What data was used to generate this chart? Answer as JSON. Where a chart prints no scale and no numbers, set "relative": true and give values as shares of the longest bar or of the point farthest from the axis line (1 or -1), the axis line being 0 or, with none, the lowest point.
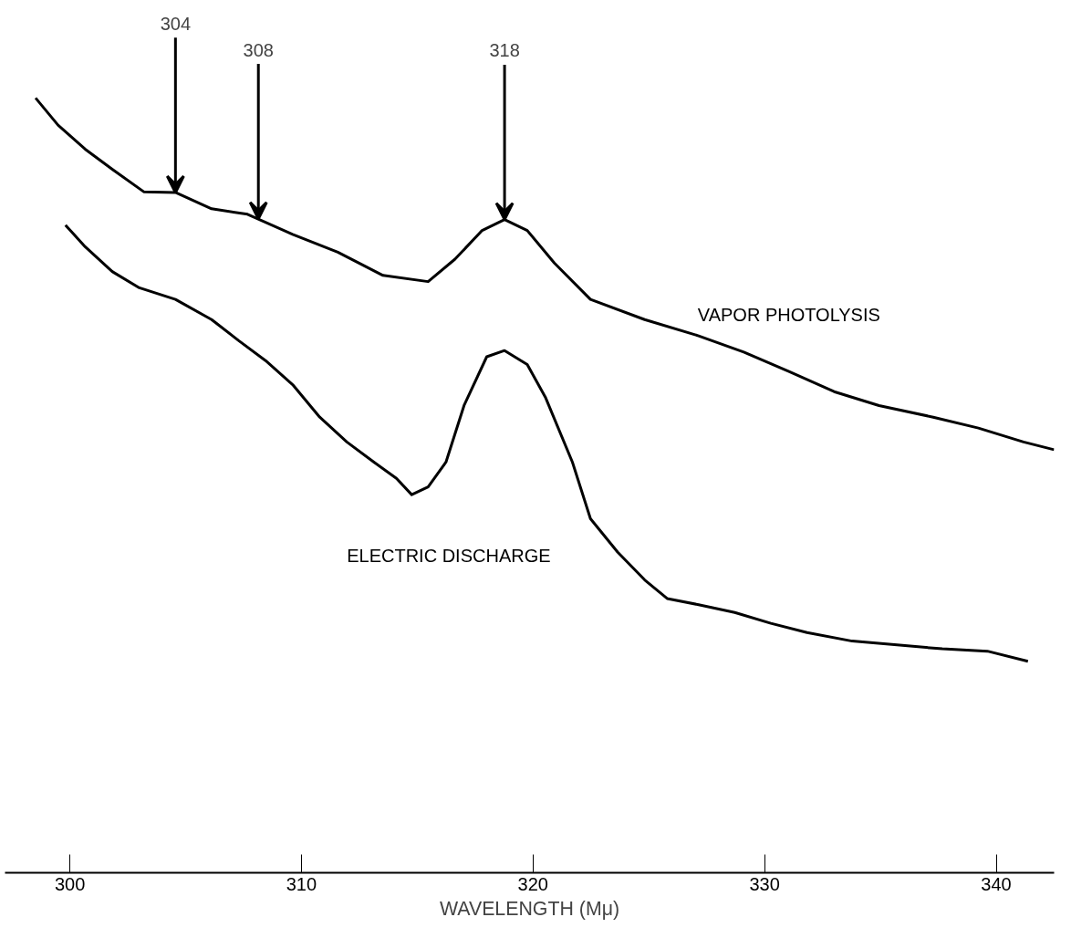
{
  "chart_data": {
    "type": "line",
    "relative": true,
    "xlabel": "WAVELENGTH (Mμ)",
    "xlim": [
      297.2,
      342.5
    ],
    "xticks": [
      300,
      310,
      320,
      330,
      340
    ],
    "grid": false,
    "series": [
      {
        "name": "VAPOR PHOTOLYSIS",
        "color": "#000000",
        "x": [
          298.52,
          299.49,
          300.66,
          301.83,
          303.19,
          304.56,
          306.12,
          307.67,
          309.62,
          311.57,
          313.52,
          315.47,
          316.63,
          317.8,
          318.77,
          319.75,
          320.92,
          322.48,
          324.82,
          327.15,
          329.1,
          331.05,
          333.0,
          334.94,
          337.28,
          339.23,
          341.18,
          342.5
        ],
        "values": [
          1.0,
          0.965,
          0.934,
          0.908,
          0.879,
          0.878,
          0.857,
          0.85,
          0.824,
          0.801,
          0.771,
          0.763,
          0.792,
          0.829,
          0.843,
          0.829,
          0.787,
          0.74,
          0.714,
          0.693,
          0.672,
          0.647,
          0.621,
          0.603,
          0.588,
          0.574,
          0.556,
          0.546
        ]
      },
      {
        "name": "ELECTRIC DISCHARGE",
        "color": "#000000",
        "x": [
          299.81,
          300.66,
          301.83,
          303.0,
          304.56,
          306.12,
          307.28,
          308.45,
          309.62,
          310.79,
          311.96,
          313.13,
          314.1,
          314.76,
          315.47,
          316.24,
          317.02,
          318.0,
          318.77,
          319.75,
          320.53,
          321.7,
          322.48,
          323.65,
          324.82,
          325.79,
          327.15,
          328.71,
          330.27,
          331.83,
          333.78,
          335.72,
          337.67,
          339.62,
          341.37
        ],
        "values": [
          0.836,
          0.808,
          0.776,
          0.755,
          0.74,
          0.714,
          0.687,
          0.661,
          0.63,
          0.588,
          0.556,
          0.53,
          0.509,
          0.488,
          0.498,
          0.53,
          0.603,
          0.666,
          0.674,
          0.656,
          0.614,
          0.53,
          0.457,
          0.414,
          0.378,
          0.354,
          0.346,
          0.336,
          0.322,
          0.31,
          0.299,
          0.294,
          0.289,
          0.286,
          0.273
        ]
      }
    ],
    "annotations": [
      {
        "text": "304",
        "x": 304.56,
        "y": 0.878
      },
      {
        "text": "308",
        "x": 308.14,
        "y": 0.844
      },
      {
        "text": "318",
        "x": 318.77,
        "y": 0.843
      }
    ]
  }
}
